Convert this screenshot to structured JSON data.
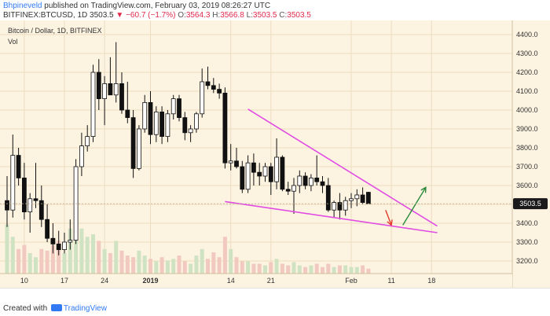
{
  "header": {
    "user": "Bhpineveld",
    "published_text": "published on TradingView.com, February 03, 2019 08:26:27 UTC",
    "symbol": "BITFINEX:BTCUSD, 1D",
    "last": "3503.5",
    "change": "▼ −60.7 (−1.7%)",
    "open_label": "O:",
    "open": "3564.3",
    "high_label": "H:",
    "high": "3566.8",
    "low_label": "L:",
    "low": "3503.5",
    "close_label": "C:",
    "close": "3503.5"
  },
  "legend": {
    "title": "Bitcoin / Dollar, 1D, BITFINEX",
    "vol": "Vol"
  },
  "footer": {
    "created_with": "Created with",
    "brand": "TradingView"
  },
  "colors": {
    "background": "#fdf3e1",
    "grid": "#ecdcc1",
    "candle": "#111111",
    "trendline": "#e14de3",
    "vol_up": "#cfe3c3",
    "vol_down": "#f1c9be",
    "arrow_up": "#2a8a3a",
    "arrow_down": "#e2392b",
    "price_tag": "#1a1a1a"
  },
  "chart_data": {
    "type": "candlestick",
    "title": "Bitcoin / Dollar, 1D, BITFINEX",
    "ylim": [
      3150,
      4450
    ],
    "y_ticks": [
      3200,
      3300,
      3400,
      3500,
      3600,
      3700,
      3800,
      3900,
      4000,
      4100,
      4200,
      4300,
      4400
    ],
    "x_tick_labels": [
      "10",
      "17",
      "24",
      "2019",
      "14",
      "21",
      "Feb",
      "11",
      "18"
    ],
    "x_tick_bars": [
      3,
      10,
      17,
      25,
      39,
      46,
      60,
      67,
      74
    ],
    "grid": true,
    "current_price": 3503.5,
    "candles": [
      {
        "o": 3520,
        "h": 3650,
        "l": 3380,
        "c": 3470
      },
      {
        "o": 3470,
        "h": 3870,
        "l": 3430,
        "c": 3760
      },
      {
        "o": 3760,
        "h": 3800,
        "l": 3600,
        "c": 3640
      },
      {
        "o": 3640,
        "h": 3720,
        "l": 3420,
        "c": 3460
      },
      {
        "o": 3460,
        "h": 3560,
        "l": 3350,
        "c": 3530
      },
      {
        "o": 3530,
        "h": 3720,
        "l": 3480,
        "c": 3520
      },
      {
        "o": 3520,
        "h": 3600,
        "l": 3380,
        "c": 3420
      },
      {
        "o": 3420,
        "h": 3500,
        "l": 3300,
        "c": 3320
      },
      {
        "o": 3320,
        "h": 3400,
        "l": 3240,
        "c": 3290
      },
      {
        "o": 3290,
        "h": 3360,
        "l": 3230,
        "c": 3260
      },
      {
        "o": 3260,
        "h": 3350,
        "l": 3240,
        "c": 3300
      },
      {
        "o": 3300,
        "h": 3420,
        "l": 3260,
        "c": 3310
      },
      {
        "o": 3310,
        "h": 3740,
        "l": 3290,
        "c": 3700
      },
      {
        "o": 3700,
        "h": 3880,
        "l": 3650,
        "c": 3810
      },
      {
        "o": 3810,
        "h": 3920,
        "l": 3780,
        "c": 3860
      },
      {
        "o": 3860,
        "h": 4240,
        "l": 3830,
        "c": 4200
      },
      {
        "o": 4200,
        "h": 4270,
        "l": 4000,
        "c": 4060
      },
      {
        "o": 4060,
        "h": 4180,
        "l": 3920,
        "c": 4140
      },
      {
        "o": 4140,
        "h": 4280,
        "l": 4080,
        "c": 4080
      },
      {
        "o": 4080,
        "h": 4360,
        "l": 4040,
        "c": 4140
      },
      {
        "o": 4140,
        "h": 4200,
        "l": 3980,
        "c": 4000
      },
      {
        "o": 4000,
        "h": 4150,
        "l": 3930,
        "c": 3960
      },
      {
        "o": 3960,
        "h": 4000,
        "l": 3640,
        "c": 3690
      },
      {
        "o": 3690,
        "h": 3920,
        "l": 3680,
        "c": 3900
      },
      {
        "o": 3900,
        "h": 4080,
        "l": 3880,
        "c": 4040
      },
      {
        "o": 4040,
        "h": 4100,
        "l": 3820,
        "c": 3870
      },
      {
        "o": 3870,
        "h": 4020,
        "l": 3830,
        "c": 3990
      },
      {
        "o": 3990,
        "h": 4020,
        "l": 3820,
        "c": 3860
      },
      {
        "o": 3860,
        "h": 4000,
        "l": 3830,
        "c": 3980
      },
      {
        "o": 3980,
        "h": 4080,
        "l": 3950,
        "c": 4060
      },
      {
        "o": 4060,
        "h": 4080,
        "l": 3940,
        "c": 3960
      },
      {
        "o": 3960,
        "h": 3990,
        "l": 3840,
        "c": 3880
      },
      {
        "o": 3880,
        "h": 3920,
        "l": 3830,
        "c": 3900
      },
      {
        "o": 3900,
        "h": 3990,
        "l": 3880,
        "c": 3980
      },
      {
        "o": 3980,
        "h": 4220,
        "l": 3960,
        "c": 4150
      },
      {
        "o": 4150,
        "h": 4230,
        "l": 4110,
        "c": 4130
      },
      {
        "o": 4130,
        "h": 4170,
        "l": 4090,
        "c": 4110
      },
      {
        "o": 4110,
        "h": 4140,
        "l": 4060,
        "c": 4090
      },
      {
        "o": 4090,
        "h": 4120,
        "l": 3690,
        "c": 3720
      },
      {
        "o": 3720,
        "h": 3820,
        "l": 3680,
        "c": 3730
      },
      {
        "o": 3730,
        "h": 3800,
        "l": 3690,
        "c": 3700
      },
      {
        "o": 3700,
        "h": 3730,
        "l": 3560,
        "c": 3580
      },
      {
        "o": 3580,
        "h": 3760,
        "l": 3560,
        "c": 3720
      },
      {
        "o": 3720,
        "h": 3770,
        "l": 3600,
        "c": 3670
      },
      {
        "o": 3670,
        "h": 3720,
        "l": 3600,
        "c": 3650
      },
      {
        "o": 3650,
        "h": 3720,
        "l": 3620,
        "c": 3700
      },
      {
        "o": 3700,
        "h": 3720,
        "l": 3550,
        "c": 3620
      },
      {
        "o": 3620,
        "h": 3850,
        "l": 3580,
        "c": 3750
      },
      {
        "o": 3750,
        "h": 3760,
        "l": 3570,
        "c": 3580
      },
      {
        "o": 3580,
        "h": 3620,
        "l": 3550,
        "c": 3570
      },
      {
        "o": 3570,
        "h": 3640,
        "l": 3450,
        "c": 3600
      },
      {
        "o": 3600,
        "h": 3680,
        "l": 3560,
        "c": 3650
      },
      {
        "o": 3650,
        "h": 3670,
        "l": 3580,
        "c": 3600
      },
      {
        "o": 3600,
        "h": 3660,
        "l": 3570,
        "c": 3640
      },
      {
        "o": 3640,
        "h": 3760,
        "l": 3600,
        "c": 3620
      },
      {
        "o": 3620,
        "h": 3650,
        "l": 3560,
        "c": 3600
      },
      {
        "o": 3600,
        "h": 3640,
        "l": 3460,
        "c": 3470
      },
      {
        "o": 3470,
        "h": 3520,
        "l": 3430,
        "c": 3510
      },
      {
        "o": 3510,
        "h": 3560,
        "l": 3420,
        "c": 3470
      },
      {
        "o": 3470,
        "h": 3540,
        "l": 3440,
        "c": 3520
      },
      {
        "o": 3520,
        "h": 3560,
        "l": 3480,
        "c": 3530
      },
      {
        "o": 3530,
        "h": 3580,
        "l": 3490,
        "c": 3550
      },
      {
        "o": 3550,
        "h": 3590,
        "l": 3500,
        "c": 3510
      },
      {
        "o": 3564.3,
        "h": 3566.8,
        "l": 3503.5,
        "c": 3503.5
      }
    ],
    "volume": [
      {
        "v": 60,
        "up": true
      },
      {
        "v": 45,
        "up": true
      },
      {
        "v": 30,
        "up": false
      },
      {
        "v": 35,
        "up": false
      },
      {
        "v": 25,
        "up": true
      },
      {
        "v": 20,
        "up": true
      },
      {
        "v": 30,
        "up": false
      },
      {
        "v": 28,
        "up": false
      },
      {
        "v": 35,
        "up": false
      },
      {
        "v": 40,
        "up": false
      },
      {
        "v": 25,
        "up": true
      },
      {
        "v": 55,
        "up": true
      },
      {
        "v": 75,
        "up": true
      },
      {
        "v": 55,
        "up": true
      },
      {
        "v": 45,
        "up": true
      },
      {
        "v": 48,
        "up": true
      },
      {
        "v": 40,
        "up": false
      },
      {
        "v": 30,
        "up": true
      },
      {
        "v": 25,
        "up": false
      },
      {
        "v": 40,
        "up": true
      },
      {
        "v": 28,
        "up": false
      },
      {
        "v": 22,
        "up": false
      },
      {
        "v": 20,
        "up": false
      },
      {
        "v": 28,
        "up": true
      },
      {
        "v": 22,
        "up": true
      },
      {
        "v": 18,
        "up": false
      },
      {
        "v": 15,
        "up": true
      },
      {
        "v": 20,
        "up": false
      },
      {
        "v": 16,
        "up": true
      },
      {
        "v": 18,
        "up": true
      },
      {
        "v": 22,
        "up": false
      },
      {
        "v": 15,
        "up": false
      },
      {
        "v": 12,
        "up": true
      },
      {
        "v": 22,
        "up": true
      },
      {
        "v": 30,
        "up": true
      },
      {
        "v": 18,
        "up": false
      },
      {
        "v": 26,
        "up": false
      },
      {
        "v": 20,
        "up": false
      },
      {
        "v": 45,
        "up": false
      },
      {
        "v": 30,
        "up": true
      },
      {
        "v": 20,
        "up": false
      },
      {
        "v": 15,
        "up": false
      },
      {
        "v": 15,
        "up": true
      },
      {
        "v": 12,
        "up": false
      },
      {
        "v": 12,
        "up": false
      },
      {
        "v": 10,
        "up": true
      },
      {
        "v": 14,
        "up": false
      },
      {
        "v": 18,
        "up": true
      },
      {
        "v": 12,
        "up": false
      },
      {
        "v": 10,
        "up": false
      },
      {
        "v": 14,
        "up": true
      },
      {
        "v": 10,
        "up": true
      },
      {
        "v": 8,
        "up": false
      },
      {
        "v": 10,
        "up": true
      },
      {
        "v": 12,
        "up": false
      },
      {
        "v": 8,
        "up": false
      },
      {
        "v": 12,
        "up": false
      },
      {
        "v": 8,
        "up": true
      },
      {
        "v": 10,
        "up": false
      },
      {
        "v": 10,
        "up": true
      },
      {
        "v": 8,
        "up": true
      },
      {
        "v": 8,
        "up": true
      },
      {
        "v": 10,
        "up": false
      },
      {
        "v": 6,
        "up": false
      }
    ],
    "trendlines": [
      {
        "name": "upper",
        "from": {
          "bar": 42,
          "price": 4005
        },
        "to": {
          "bar": 75,
          "price": 3385
        }
      },
      {
        "name": "lower",
        "from": {
          "bar": 38,
          "price": 3515
        },
        "to": {
          "bar": 75,
          "price": 3350
        }
      }
    ],
    "arrows": [
      {
        "name": "down",
        "from": {
          "bar": 66,
          "price": 3470
        },
        "to": {
          "bar": 67,
          "price": 3390
        }
      },
      {
        "name": "up",
        "from": {
          "bar": 69,
          "price": 3390
        },
        "to": {
          "bar": 73,
          "price": 3590
        }
      }
    ]
  }
}
